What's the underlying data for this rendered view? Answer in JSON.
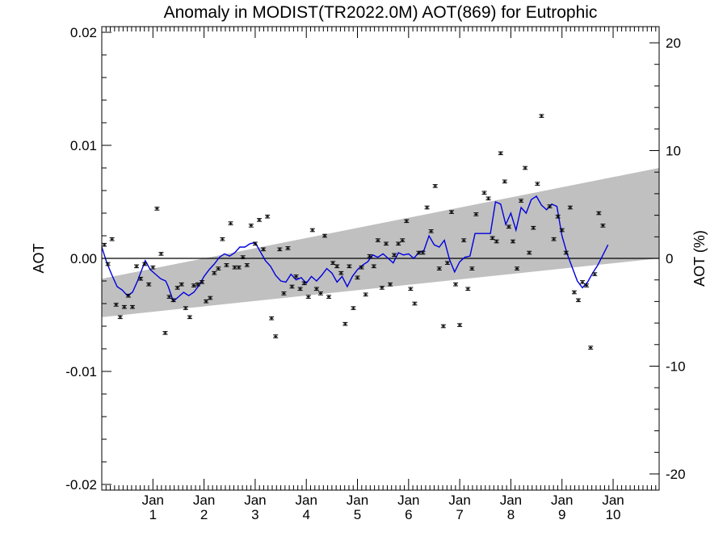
{
  "chart_data": {
    "type": "scatter",
    "title": "Anomaly in MODIST(TR2022.0M) AOT(869) for Eutrophic",
    "ylabel": "AOT",
    "ylabel_right": "AOT (%)",
    "ylim": [
      -0.02,
      0.02
    ],
    "ylim_right": [
      -21.5,
      21.5
    ],
    "xlim": [
      0,
      10.9
    ],
    "y_ticks": [
      "-0.02",
      "-0.01",
      "0.00",
      "0.01",
      "0.02"
    ],
    "y_right_ticks": [
      "-20",
      "-10",
      "0",
      "10",
      "20"
    ],
    "x_tick_labels": [
      {
        "month": "Jan",
        "year": "1"
      },
      {
        "month": "Jan",
        "year": "2"
      },
      {
        "month": "Jan",
        "year": "3"
      },
      {
        "month": "Jan",
        "year": "4"
      },
      {
        "month": "Jan",
        "year": "5"
      },
      {
        "month": "Jan",
        "year": "6"
      },
      {
        "month": "Jan",
        "year": "7"
      },
      {
        "month": "Jan",
        "year": "8"
      },
      {
        "month": "Jan",
        "year": "9"
      },
      {
        "month": "Jan",
        "year": "10"
      }
    ],
    "grid": false,
    "series": [
      {
        "kind": "monthly_anomaly_points_with_error_bars",
        "color": "#000000",
        "points": [
          [
            0.05,
            0.0012
          ],
          [
            0.12,
            -0.0005
          ],
          [
            0.2,
            0.0017
          ],
          [
            0.28,
            -0.0041
          ],
          [
            0.36,
            -0.0052
          ],
          [
            0.44,
            -0.0043
          ],
          [
            0.52,
            -0.0033
          ],
          [
            0.6,
            -0.0043
          ],
          [
            0.68,
            -0.0007
          ],
          [
            0.76,
            -0.0018
          ],
          [
            0.84,
            -0.0005
          ],
          [
            0.92,
            -0.0023
          ],
          [
            1.0,
            -0.0008
          ],
          [
            1.08,
            0.0044
          ],
          [
            1.16,
            0.0004
          ],
          [
            1.24,
            -0.0066
          ],
          [
            1.32,
            -0.0034
          ],
          [
            1.4,
            -0.0037
          ],
          [
            1.48,
            -0.0026
          ],
          [
            1.56,
            -0.0023
          ],
          [
            1.64,
            -0.0044
          ],
          [
            1.72,
            -0.0052
          ],
          [
            1.8,
            -0.0024
          ],
          [
            1.88,
            -0.0023
          ],
          [
            1.96,
            -0.0021
          ],
          [
            2.04,
            -0.0038
          ],
          [
            2.12,
            -0.0035
          ],
          [
            2.2,
            -0.0013
          ],
          [
            2.28,
            -0.0009
          ],
          [
            2.36,
            0.0017
          ],
          [
            2.44,
            -0.0006
          ],
          [
            2.52,
            0.0031
          ],
          [
            2.6,
            -0.0008
          ],
          [
            2.68,
            -0.0008
          ],
          [
            2.76,
            0.0001
          ],
          [
            2.84,
            -0.0006
          ],
          [
            2.92,
            0.0029
          ],
          [
            3.0,
            0.0013
          ],
          [
            3.08,
            0.0034
          ],
          [
            3.16,
            0.0008
          ],
          [
            3.24,
            0.0037
          ],
          [
            3.32,
            -0.0053
          ],
          [
            3.4,
            -0.0069
          ],
          [
            3.48,
            0.0008
          ],
          [
            3.56,
            -0.0031
          ],
          [
            3.64,
            0.0009
          ],
          [
            3.72,
            -0.0025
          ],
          [
            3.8,
            -0.0016
          ],
          [
            3.88,
            -0.0027
          ],
          [
            3.96,
            -0.0022
          ],
          [
            4.04,
            -0.0034
          ],
          [
            4.12,
            0.0025
          ],
          [
            4.2,
            -0.0027
          ],
          [
            4.28,
            -0.0031
          ],
          [
            4.36,
            0.002
          ],
          [
            4.44,
            -0.0034
          ],
          [
            4.52,
            -0.0004
          ],
          [
            4.6,
            -0.0007
          ],
          [
            4.68,
            -0.0013
          ],
          [
            4.76,
            -0.0058
          ],
          [
            4.84,
            -0.0007
          ],
          [
            4.92,
            -0.0044
          ],
          [
            5.0,
            -0.0017
          ],
          [
            5.08,
            -0.0008
          ],
          [
            5.16,
            -0.0032
          ],
          [
            5.24,
            0.0002
          ],
          [
            5.32,
            -0.0007
          ],
          [
            5.4,
            0.0016
          ],
          [
            5.48,
            -0.0026
          ],
          [
            5.56,
            0.0013
          ],
          [
            5.64,
            -0.0023
          ],
          [
            5.72,
            0.0003
          ],
          [
            5.8,
            0.0013
          ],
          [
            5.88,
            0.0016
          ],
          [
            5.96,
            0.0033
          ],
          [
            6.04,
            -0.0027
          ],
          [
            6.12,
            -0.004
          ],
          [
            6.2,
            0.0005
          ],
          [
            6.28,
            0.0005
          ],
          [
            6.36,
            0.0045
          ],
          [
            6.44,
            0.0024
          ],
          [
            6.52,
            0.0064
          ],
          [
            6.6,
            -0.0009
          ],
          [
            6.68,
            -0.006
          ],
          [
            6.76,
            -0.0004
          ],
          [
            6.84,
            0.0041
          ],
          [
            6.92,
            -0.0023
          ],
          [
            7.0,
            -0.0059
          ],
          [
            7.08,
            0.0016
          ],
          [
            7.16,
            -0.0027
          ],
          [
            7.24,
            -0.0009
          ],
          [
            7.32,
            0.0039
          ],
          [
            7.48,
            0.0058
          ],
          [
            7.56,
            0.0053
          ],
          [
            7.64,
            0.0018
          ],
          [
            7.72,
            0.0015
          ],
          [
            7.8,
            0.0093
          ],
          [
            7.88,
            0.0068
          ],
          [
            7.96,
            0.0028
          ],
          [
            8.04,
            0.0015
          ],
          [
            8.12,
            -0.0009
          ],
          [
            8.2,
            0.0051
          ],
          [
            8.28,
            0.008
          ],
          [
            8.36,
            0.0005
          ],
          [
            8.44,
            0.0027
          ],
          [
            8.52,
            0.0066
          ],
          [
            8.6,
            0.0126
          ],
          [
            8.76,
            0.0046
          ],
          [
            8.84,
            0.0017
          ],
          [
            8.92,
            0.0037
          ],
          [
            9.0,
            0.0025
          ],
          [
            9.08,
            0.0005
          ],
          [
            9.16,
            0.0045
          ],
          [
            9.24,
            -0.003
          ],
          [
            9.32,
            -0.0037
          ],
          [
            9.4,
            -0.0021
          ],
          [
            9.48,
            -0.0024
          ],
          [
            9.56,
            -0.0079
          ],
          [
            9.64,
            -0.0014
          ],
          [
            9.72,
            0.004
          ],
          [
            9.8,
            0.0029
          ]
        ]
      },
      {
        "kind": "running_mean",
        "color": "#0000dd",
        "points": [
          [
            0.0,
            0.001
          ],
          [
            0.1,
            -0.0004
          ],
          [
            0.2,
            -0.0015
          ],
          [
            0.3,
            -0.0025
          ],
          [
            0.4,
            -0.0028
          ],
          [
            0.5,
            -0.0033
          ],
          [
            0.6,
            -0.003
          ],
          [
            0.7,
            -0.002
          ],
          [
            0.8,
            -0.0008
          ],
          [
            0.85,
            -0.0002
          ],
          [
            0.95,
            -0.001
          ],
          [
            1.05,
            -0.0014
          ],
          [
            1.15,
            -0.0018
          ],
          [
            1.25,
            -0.002
          ],
          [
            1.3,
            -0.0025
          ],
          [
            1.4,
            -0.0038
          ],
          [
            1.5,
            -0.0034
          ],
          [
            1.6,
            -0.003
          ],
          [
            1.7,
            -0.0033
          ],
          [
            1.8,
            -0.003
          ],
          [
            1.9,
            -0.0024
          ],
          [
            2.0,
            -0.0016
          ],
          [
            2.1,
            -0.001
          ],
          [
            2.2,
            -0.0005
          ],
          [
            2.3,
            0.0001
          ],
          [
            2.4,
            0.0004
          ],
          [
            2.5,
            0.0002
          ],
          [
            2.6,
            0.0005
          ],
          [
            2.7,
            0.001
          ],
          [
            2.8,
            0.001
          ],
          [
            2.9,
            0.0013
          ],
          [
            3.0,
            0.0014
          ],
          [
            3.1,
            0.0006
          ],
          [
            3.2,
            -0.0002
          ],
          [
            3.3,
            -0.0007
          ],
          [
            3.4,
            -0.0015
          ],
          [
            3.5,
            -0.002
          ],
          [
            3.6,
            -0.0021
          ],
          [
            3.7,
            -0.0014
          ],
          [
            3.8,
            -0.0019
          ],
          [
            3.9,
            -0.0017
          ],
          [
            4.0,
            -0.0022
          ],
          [
            4.1,
            -0.0016
          ],
          [
            4.2,
            -0.002
          ],
          [
            4.3,
            -0.0015
          ],
          [
            4.4,
            -0.0009
          ],
          [
            4.5,
            -0.0013
          ],
          [
            4.6,
            -0.0021
          ],
          [
            4.7,
            -0.0016
          ],
          [
            4.8,
            -0.0025
          ],
          [
            4.9,
            -0.0016
          ],
          [
            5.0,
            -0.001
          ],
          [
            5.1,
            -0.0006
          ],
          [
            5.2,
            -0.0003
          ],
          [
            5.3,
            0.0003
          ],
          [
            5.4,
            0.0001
          ],
          [
            5.5,
            0.0004
          ],
          [
            5.6,
            0.0
          ],
          [
            5.7,
            -0.0004
          ],
          [
            5.8,
            0.0005
          ],
          [
            5.9,
            0.0003
          ],
          [
            6.0,
            0.0004
          ],
          [
            6.1,
            0.0
          ],
          [
            6.2,
            0.0005
          ],
          [
            6.3,
            0.0007
          ],
          [
            6.4,
            0.002
          ],
          [
            6.5,
            0.0012
          ],
          [
            6.6,
            0.001
          ],
          [
            6.7,
            0.0016
          ],
          [
            6.8,
            -0.0001
          ],
          [
            6.9,
            -0.0012
          ],
          [
            7.0,
            -0.0003
          ],
          [
            7.1,
            0.0001
          ],
          [
            7.2,
            0.0002
          ],
          [
            7.3,
            0.0022
          ],
          [
            7.4,
            0.0022
          ],
          [
            7.5,
            0.0022
          ],
          [
            7.6,
            0.0022
          ],
          [
            7.7,
            0.005
          ],
          [
            7.8,
            0.0048
          ],
          [
            7.9,
            0.003
          ],
          [
            8.0,
            0.004
          ],
          [
            8.1,
            0.0025
          ],
          [
            8.2,
            0.0045
          ],
          [
            8.3,
            0.004
          ],
          [
            8.4,
            0.0052
          ],
          [
            8.5,
            0.0055
          ],
          [
            8.6,
            0.0047
          ],
          [
            8.7,
            0.0043
          ],
          [
            8.8,
            0.0048
          ],
          [
            8.9,
            0.0046
          ],
          [
            9.0,
            0.002
          ],
          [
            9.1,
            0.0004
          ],
          [
            9.2,
            -0.0008
          ],
          [
            9.3,
            -0.002
          ],
          [
            9.4,
            -0.0026
          ],
          [
            9.5,
            -0.0021
          ],
          [
            9.6,
            -0.0013
          ],
          [
            9.7,
            -0.0006
          ],
          [
            9.8,
            0.0003
          ],
          [
            9.9,
            0.0012
          ]
        ]
      },
      {
        "kind": "trend_band",
        "color": "#c0c0c0",
        "x": [
          0.0,
          10.9
        ],
        "upper": [
          -0.0018,
          0.008
        ],
        "lower": [
          -0.0052,
          0.0
        ]
      }
    ],
    "zero_line": 0.0
  }
}
